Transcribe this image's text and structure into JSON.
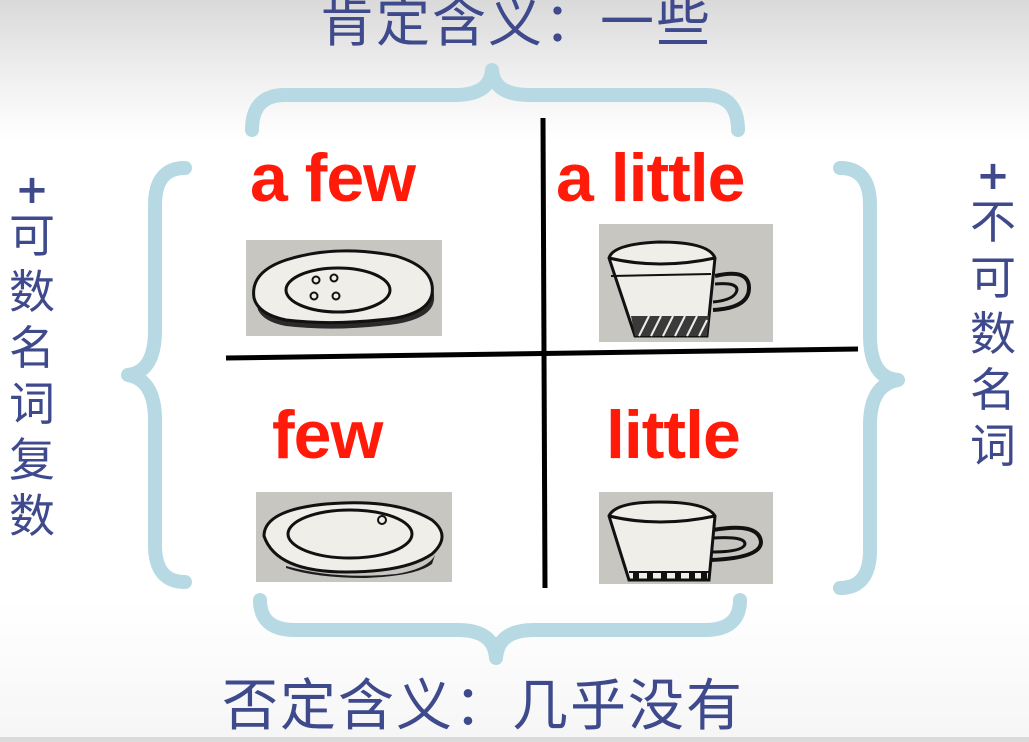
{
  "titles": {
    "positive": "肯定含义：一些",
    "negative": "否定含义：几乎没有"
  },
  "side_labels": {
    "left_plus": "+",
    "left_text": "可数名词复数",
    "right_plus": "+",
    "right_text": "不可数名词"
  },
  "terms": {
    "a_few": "a few",
    "a_little": "a little",
    "few": "few",
    "little": "little"
  },
  "colors": {
    "term_red": "#ff1a0a",
    "cjk_blue": "#3e4a8c",
    "brace_blue": "#b7d9e3",
    "divider": "#000000"
  },
  "icons": {
    "a_few": "plate-with-several-beans-icon",
    "a_little": "cup-with-little-liquid-icon",
    "few": "plate-with-one-bean-icon",
    "little": "empty-cup-icon"
  }
}
